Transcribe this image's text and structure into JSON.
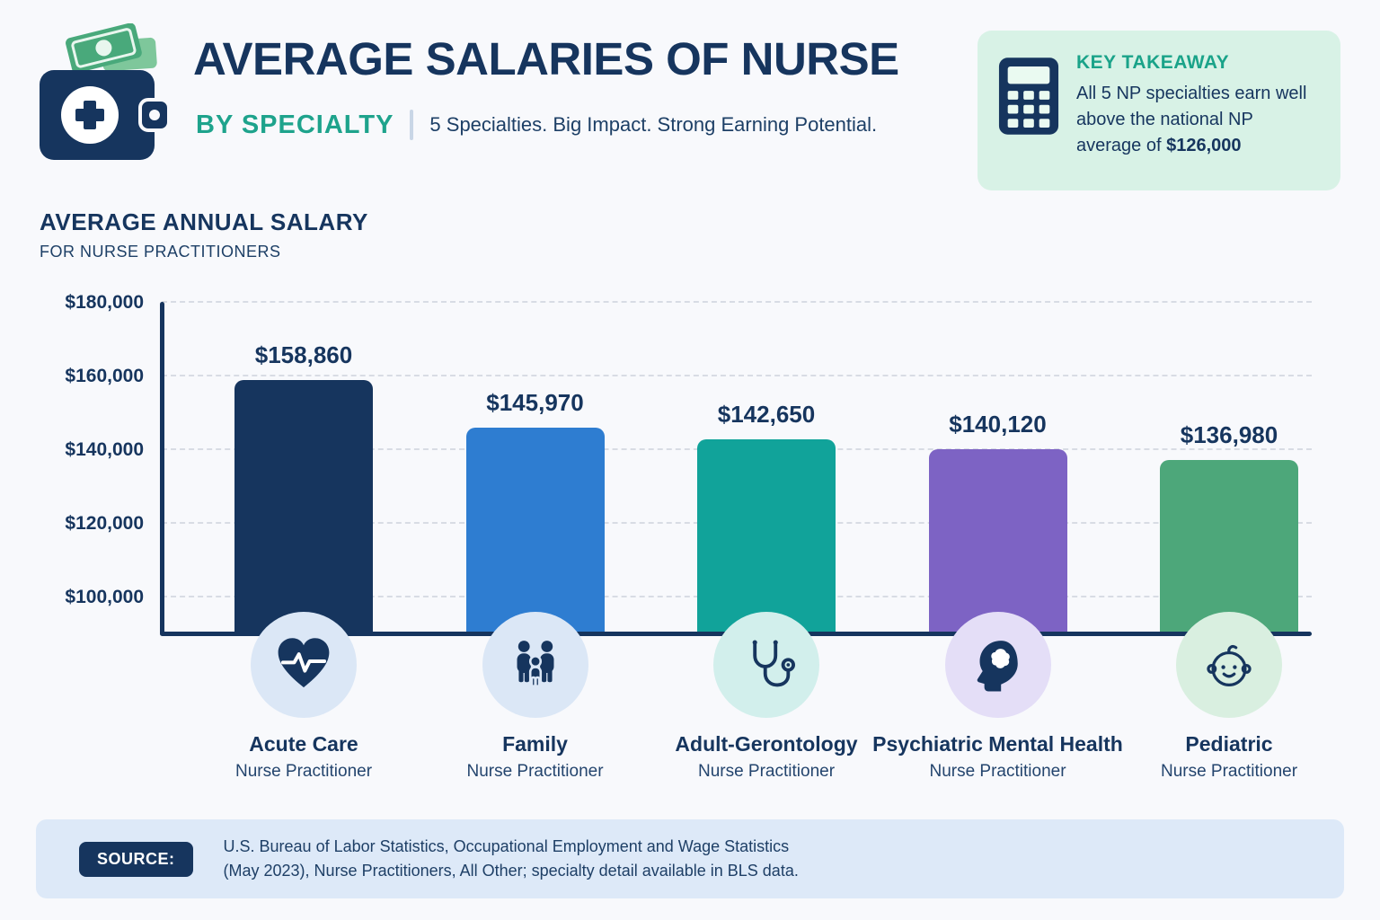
{
  "header": {
    "title": "AVERAGE SALARIES OF NURSE",
    "subtitle": "BY SPECIALTY",
    "tagline": "5 Specialties. Big Impact. Strong Earning Potential.",
    "logo_icon": "wallet-medical-icon"
  },
  "key_takeaway": {
    "icon": "calculator-icon",
    "label": "KEY TAKEAWAY",
    "text": "All 5 NP specialties earn well above the national NP average of ",
    "highlight": "$126,000",
    "bg_color": "#d8f2e6",
    "label_color": "#1aa389"
  },
  "chart_data": {
    "type": "bar",
    "title": "AVERAGE ANNUAL SALARY",
    "subtitle": "FOR NURSE PRACTITIONERS",
    "categories": [
      "Acute Care",
      "Family",
      "Adult-Gerontology",
      "Psychiatric Mental Health",
      "Pediatric"
    ],
    "category_sublabel": "Nurse Practitioner",
    "values": [
      158860,
      145970,
      142650,
      140120,
      136980
    ],
    "value_labels": [
      "$158,860",
      "$145,970",
      "$142,650",
      "$140,120",
      "$136,980"
    ],
    "bar_colors": [
      "#16355e",
      "#2e7dd1",
      "#11a39a",
      "#7d63c4",
      "#4da77a"
    ],
    "icon_bg_colors": [
      "#dbe7f6",
      "#dbe7f6",
      "#d2efec",
      "#e4def7",
      "#d9efe0"
    ],
    "icons": [
      "heart-pulse-icon",
      "family-icon",
      "stethoscope-icon",
      "head-brain-icon",
      "baby-icon"
    ],
    "y_ticks": [
      "$180,000",
      "$160,000",
      "$140,000",
      "$120,000",
      "$100,000"
    ],
    "y_tick_values": [
      180000,
      160000,
      140000,
      120000,
      100000
    ],
    "ylim": [
      90000,
      180000
    ],
    "grid": "dashed-horizontal",
    "legend": "none",
    "accent_color": "#16355e"
  },
  "source": {
    "label": "SOURCE:",
    "text": "U.S. Bureau of Labor Statistics, Occupational Employment and Wage Statistics (May 2023), Nurse Practitioners, All Other; specialty detail available in BLS data."
  }
}
